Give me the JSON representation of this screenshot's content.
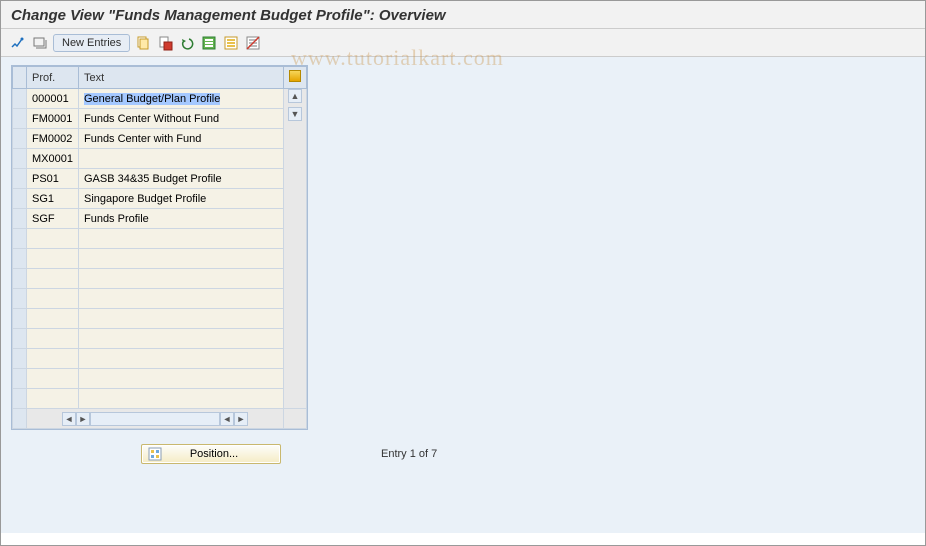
{
  "title": "Change View \"Funds Management Budget Profile\": Overview",
  "toolbar": {
    "new_entries_label": "New Entries"
  },
  "table": {
    "columns": [
      "Prof.",
      "Text"
    ],
    "col_widths": [
      "50px",
      "205px"
    ],
    "header_bg": "#dde6f0",
    "cell_bg": "#f5f2e6",
    "border_color": "#a9bdd6",
    "selected_bg": "#a4c8ff",
    "rows": [
      {
        "prof": "000001",
        "text": "General Budget/Plan Profile",
        "selected": true
      },
      {
        "prof": "FM0001",
        "text": "Funds Center Without Fund"
      },
      {
        "prof": "FM0002",
        "text": "Funds Center with Fund"
      },
      {
        "prof": "MX0001",
        "text": ""
      },
      {
        "prof": "PS01",
        "text": "GASB 34&35 Budget Profile"
      },
      {
        "prof": "SG1",
        "text": "Singapore Budget Profile"
      },
      {
        "prof": "SGF",
        "text": "Funds Profile"
      }
    ],
    "empty_rows": 9
  },
  "footer": {
    "position_label": "Position...",
    "entry_label": "Entry 1 of 7"
  },
  "watermark": "www.tutorialkart.com",
  "colors": {
    "panel_bg": "#eaf1f8",
    "toolbar_bg": "#f2f2f2"
  }
}
